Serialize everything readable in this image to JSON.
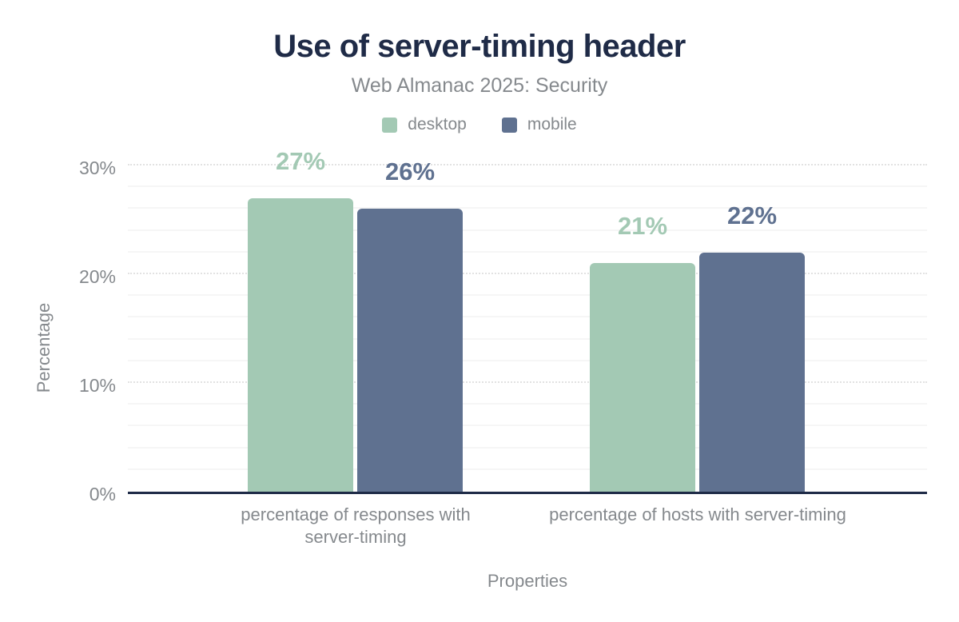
{
  "header": {
    "title": "Use of server-timing header",
    "subtitle": "Web Almanac 2025: Security"
  },
  "legend": {
    "items": [
      {
        "label": "desktop",
        "color": "#a3c9b4"
      },
      {
        "label": "mobile",
        "color": "#5f7190"
      }
    ]
  },
  "chart_data": {
    "type": "bar",
    "title": "Use of server-timing header",
    "subtitle": "Web Almanac 2025: Security",
    "categories": [
      "percentage of responses with server-timing",
      "percentage of hosts with server-timing"
    ],
    "series": [
      {
        "name": "desktop",
        "color": "#a3c9b4",
        "values": [
          27,
          21
        ],
        "labels": [
          "27%",
          "21%"
        ]
      },
      {
        "name": "mobile",
        "color": "#5f7190",
        "values": [
          26,
          22
        ],
        "labels": [
          "26%",
          "22%"
        ]
      }
    ],
    "xlabel": "Properties",
    "ylabel": "Percentage",
    "ylim": [
      0,
      30
    ],
    "yticks": [
      {
        "value": 30,
        "label": "30%"
      },
      {
        "value": 20,
        "label": "20%"
      },
      {
        "value": 10,
        "label": "10%"
      },
      {
        "value": 0,
        "label": "0%"
      }
    ],
    "grid": {
      "orientation": "horizontal",
      "minor_step": 2,
      "major_step": 10
    },
    "legend_position": "top",
    "value_labels_shown": true
  },
  "colors": {
    "title": "#1f2b47",
    "axis_line": "#1f2b47",
    "muted_text": "#85898d",
    "grid_minor": "#f6f6f6",
    "grid_major": "#e2e2e2",
    "background": "#ffffff"
  }
}
